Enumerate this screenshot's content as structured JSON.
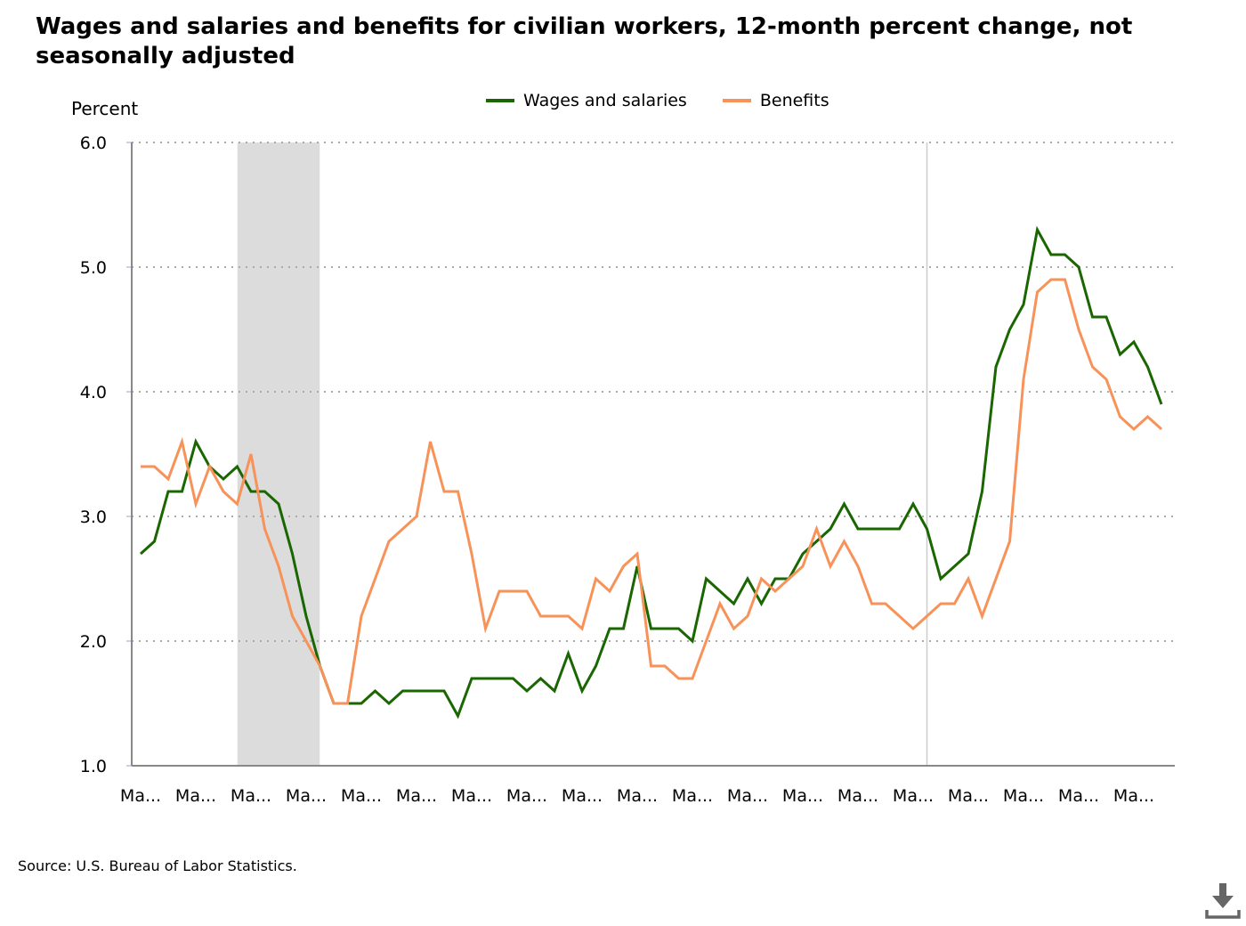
{
  "title": "Wages and salaries and benefits for civilian workers, 12-month percent change, not seasonally adjusted",
  "source": "Source: U.S. Bureau of Labor Statistics.",
  "download_icon": "download-icon",
  "chart_data": {
    "type": "line",
    "title": "Wages and salaries and benefits for civilian workers, 12-month percent change, not seasonally adjusted",
    "ylabel": "Percent",
    "xlabel": "",
    "ylim": [
      1.0,
      6.0
    ],
    "yticks": [
      "1.0",
      "2.0",
      "3.0",
      "4.0",
      "5.0",
      "6.0"
    ],
    "xtick_labels": [
      "Ma...",
      "Ma...",
      "Ma...",
      "Ma...",
      "Ma...",
      "Ma...",
      "Ma...",
      "Ma...",
      "Ma...",
      "Ma...",
      "Ma...",
      "Ma...",
      "Ma...",
      "Ma...",
      "Ma...",
      "Ma...",
      "Ma...",
      "Ma...",
      "Ma..."
    ],
    "grid": "horizontal dotted",
    "legend_position": "top-center",
    "recession_shading": {
      "start_index": 7,
      "end_index": 13
    },
    "reference_line_index": 57,
    "series": [
      {
        "name": "Wages and salaries",
        "color": "#1a6600",
        "values": [
          2.7,
          2.8,
          3.2,
          3.2,
          3.6,
          3.4,
          3.3,
          3.4,
          3.2,
          3.2,
          3.1,
          2.7,
          2.2,
          1.8,
          1.5,
          1.5,
          1.5,
          1.6,
          1.5,
          1.6,
          1.6,
          1.6,
          1.6,
          1.4,
          1.7,
          1.7,
          1.7,
          1.7,
          1.6,
          1.7,
          1.6,
          1.9,
          1.6,
          1.8,
          2.1,
          2.1,
          2.6,
          2.1,
          2.1,
          2.1,
          2.0,
          2.5,
          2.4,
          2.3,
          2.5,
          2.3,
          2.5,
          2.5,
          2.7,
          2.8,
          2.9,
          3.1,
          2.9,
          2.9,
          2.9,
          2.9,
          3.1,
          2.9,
          2.5,
          2.6,
          2.7,
          3.2,
          4.2,
          4.5,
          4.7,
          5.3,
          5.1,
          5.1,
          5.0,
          4.6,
          4.6,
          4.3,
          4.4,
          4.2,
          3.9
        ]
      },
      {
        "name": "Benefits",
        "color": "#f79259",
        "values": [
          3.4,
          3.4,
          3.3,
          3.6,
          3.1,
          3.4,
          3.2,
          3.1,
          3.5,
          2.9,
          2.6,
          2.2,
          2.0,
          1.8,
          1.5,
          1.5,
          2.2,
          2.5,
          2.8,
          2.9,
          3.0,
          3.6,
          3.2,
          3.2,
          2.7,
          2.1,
          2.4,
          2.4,
          2.4,
          2.2,
          2.2,
          2.2,
          2.1,
          2.5,
          2.4,
          2.6,
          2.7,
          1.8,
          1.8,
          1.7,
          1.7,
          2.0,
          2.3,
          2.1,
          2.2,
          2.5,
          2.4,
          2.5,
          2.6,
          2.9,
          2.6,
          2.8,
          2.6,
          2.3,
          2.3,
          2.2,
          2.1,
          2.2,
          2.3,
          2.3,
          2.5,
          2.2,
          2.5,
          2.8,
          4.1,
          4.8,
          4.9,
          4.9,
          4.5,
          4.2,
          4.1,
          3.8,
          3.7,
          3.8,
          3.7
        ]
      }
    ]
  }
}
